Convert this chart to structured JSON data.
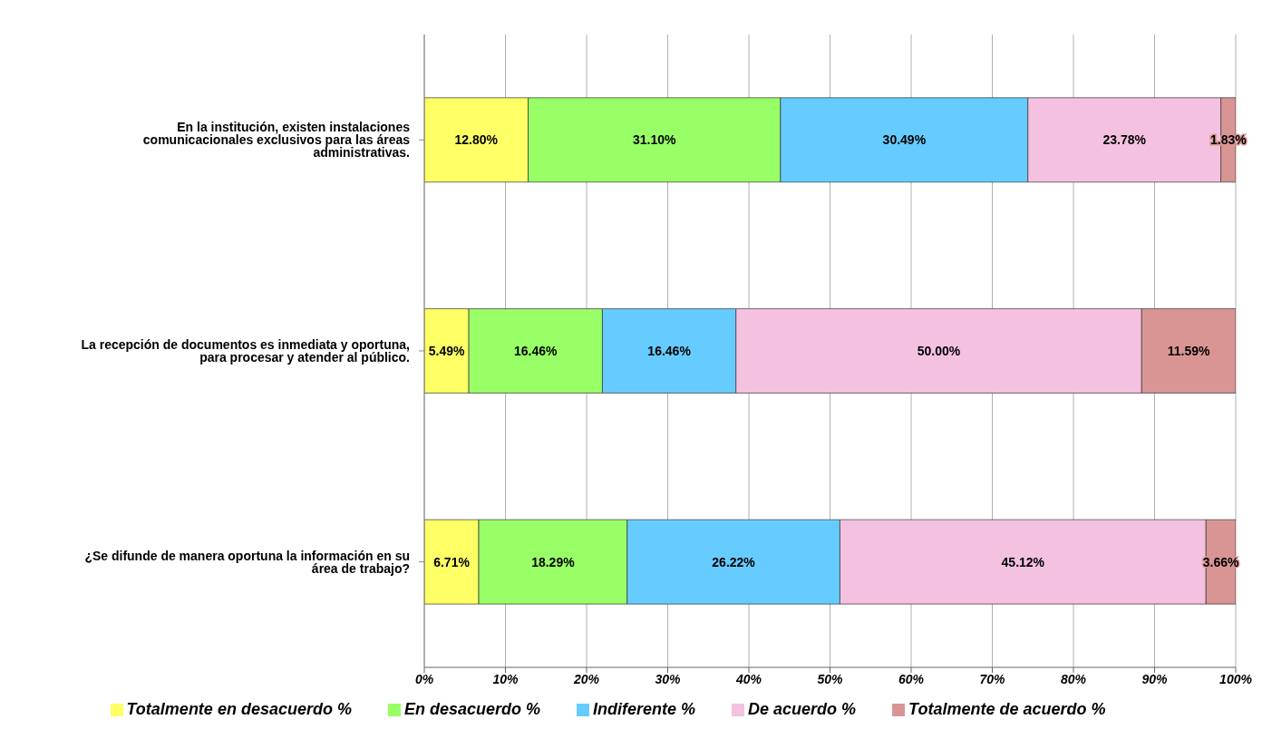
{
  "chart_data": {
    "type": "bar",
    "orientation": "horizontal",
    "stacked": true,
    "categories": [
      "En la institución, existen instalaciones comunicacionales exclusivos para las áreas administrativas.",
      "La recepción de documentos es inmediata y oportuna, para procesar y atender al público.",
      "¿Se difunde de manera oportuna la información en su área de trabajo?"
    ],
    "series": [
      {
        "name": "Totalmente en desacuerdo %",
        "color": "#ffff66",
        "values": [
          12.8,
          5.49,
          6.71
        ],
        "value_labels": [
          "12.80%",
          "5.49%",
          "6.71%"
        ]
      },
      {
        "name": "En desacuerdo %",
        "color": "#99ff66",
        "values": [
          31.1,
          16.46,
          18.29
        ],
        "value_labels": [
          "31.10%",
          "16.46%",
          "18.29%"
        ]
      },
      {
        "name": "Indiferente %",
        "color": "#66ccff",
        "values": [
          30.49,
          16.46,
          26.22
        ],
        "value_labels": [
          "30.49%",
          "16.46%",
          "26.22%"
        ]
      },
      {
        "name": "De acuerdo %",
        "color": "#f4c2e0",
        "values": [
          23.78,
          50.0,
          45.12
        ],
        "value_labels": [
          "23.78%",
          "50.00%",
          "45.12%"
        ]
      },
      {
        "name": "Totalmente de acuerdo %",
        "color": "#d99594",
        "values": [
          1.83,
          11.59,
          3.66
        ],
        "value_labels": [
          "1.83%",
          "11.59%",
          "3.66%"
        ]
      }
    ],
    "xlim": [
      0,
      100
    ],
    "xticks": [
      {
        "value": 0,
        "label": "0%"
      },
      {
        "value": 10,
        "label": "10%"
      },
      {
        "value": 20,
        "label": "20%"
      },
      {
        "value": 30,
        "label": "30%"
      },
      {
        "value": 40,
        "label": "40%"
      },
      {
        "value": 50,
        "label": "50%"
      },
      {
        "value": 60,
        "label": "60%"
      },
      {
        "value": 70,
        "label": "70%"
      },
      {
        "value": 80,
        "label": "80%"
      },
      {
        "value": 90,
        "label": "90%"
      },
      {
        "value": 100,
        "label": "100%"
      }
    ],
    "grid": "x",
    "legend": "bottom"
  }
}
